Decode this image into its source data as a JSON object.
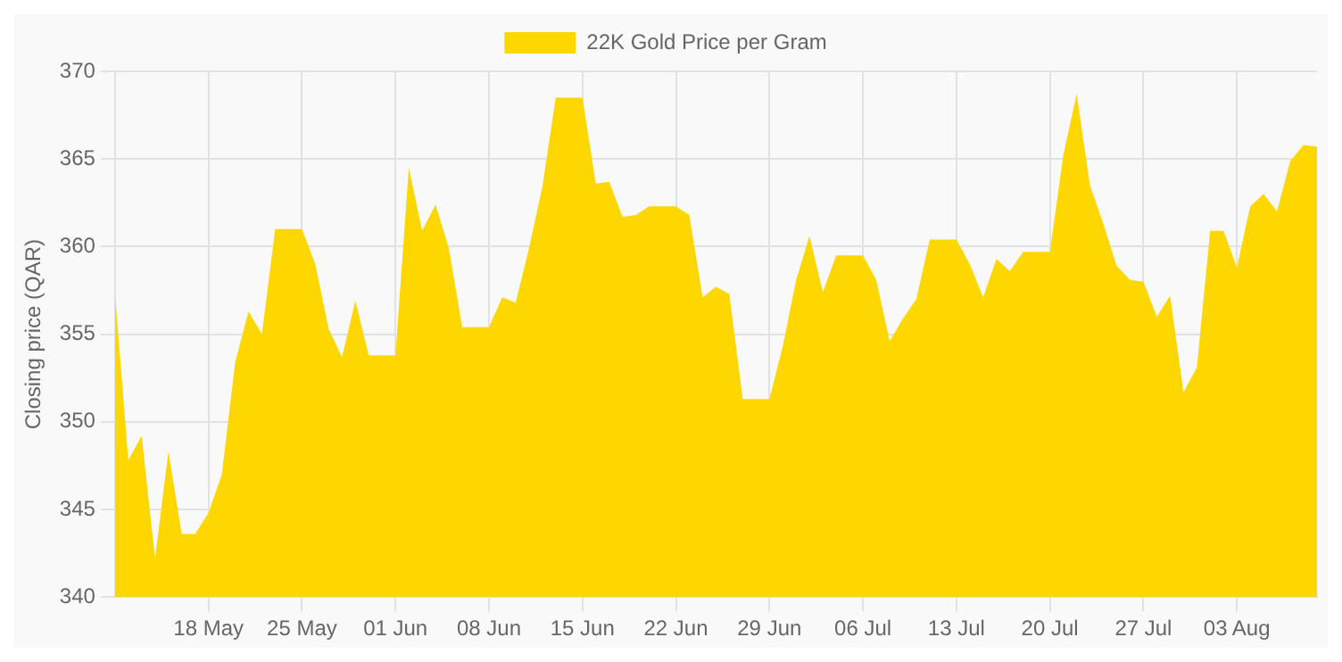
{
  "chart_data": {
    "type": "area",
    "ylabel": "Closing price (QAR)",
    "legend": "top",
    "grid": true,
    "marker": "none",
    "x": [
      "--05-11",
      "--05-12",
      "--05-13",
      "--05-14",
      "--05-15",
      "--05-16",
      "--05-17",
      "--05-18",
      "--05-19",
      "--05-20",
      "--05-21",
      "--05-22",
      "--05-23",
      "--05-24",
      "--05-25",
      "--05-26",
      "--05-27",
      "--05-28",
      "--05-29",
      "--05-30",
      "--05-31",
      "--06-01",
      "--06-02",
      "--06-03",
      "--06-04",
      "--06-05",
      "--06-06",
      "--06-07",
      "--06-08",
      "--06-09",
      "--06-10",
      "--06-11",
      "--06-12",
      "--06-13",
      "--06-14",
      "--06-15",
      "--06-16",
      "--06-17",
      "--06-18",
      "--06-19",
      "--06-20",
      "--06-21",
      "--06-22",
      "--06-23",
      "--06-24",
      "--06-25",
      "--06-26",
      "--06-27",
      "--06-28",
      "--06-29",
      "--06-30",
      "--07-01",
      "--07-02",
      "--07-03",
      "--07-04",
      "--07-05",
      "--07-06",
      "--07-07",
      "--07-08",
      "--07-09",
      "--07-10",
      "--07-11",
      "--07-12",
      "--07-13",
      "--07-14",
      "--07-15",
      "--07-16",
      "--07-17",
      "--07-18",
      "--07-19",
      "--07-20",
      "--07-21",
      "--07-22",
      "--07-23",
      "--07-24",
      "--07-25",
      "--07-26",
      "--07-27",
      "--07-28",
      "--07-29",
      "--07-30",
      "--07-31",
      "--08-01",
      "--08-02",
      "--08-03",
      "--08-04",
      "--08-05",
      "--08-06",
      "--08-07",
      "--08-08",
      "--08-09"
    ],
    "series": [
      {
        "name": "22K Gold Price per Gram",
        "color": "#ffd700",
        "values": [
          357.3,
          347.8,
          349.2,
          342.2,
          348.3,
          343.6,
          343.6,
          344.8,
          347.0,
          353.4,
          356.3,
          355.0,
          361.0,
          361.0,
          361.0,
          359.0,
          355.3,
          353.7,
          356.9,
          353.8,
          353.8,
          353.8,
          364.5,
          360.9,
          362.4,
          359.9,
          355.4,
          355.4,
          355.4,
          357.1,
          356.8,
          359.9,
          363.4,
          368.5,
          368.5,
          368.5,
          363.6,
          363.7,
          361.7,
          361.8,
          362.3,
          362.3,
          362.3,
          361.8,
          357.1,
          357.7,
          357.3,
          351.3,
          351.3,
          351.3,
          354.3,
          358.1,
          360.6,
          357.4,
          359.5,
          359.5,
          359.5,
          358.1,
          354.6,
          355.9,
          357.0,
          360.4,
          360.4,
          360.4,
          359.0,
          357.1,
          359.3,
          358.6,
          359.7,
          359.7,
          359.7,
          365.2,
          368.7,
          363.5,
          361.3,
          358.9,
          358.1,
          358.0,
          356.0,
          357.2,
          351.7,
          353.1,
          360.9,
          360.9,
          358.8,
          362.3,
          363.0,
          362.0,
          364.9,
          365.8,
          365.7
        ]
      }
    ],
    "xlim": [
      "--05-11",
      "--08-09"
    ],
    "xticks": [
      {
        "value": "--05-18",
        "label": "18 May"
      },
      {
        "value": "--05-25",
        "label": "25 May"
      },
      {
        "value": "--06-01",
        "label": "01 Jun"
      },
      {
        "value": "--06-08",
        "label": "08 Jun"
      },
      {
        "value": "--06-15",
        "label": "15 Jun"
      },
      {
        "value": "--06-22",
        "label": "22 Jun"
      },
      {
        "value": "--06-29",
        "label": "29 Jun"
      },
      {
        "value": "--07-06",
        "label": "06 Jul"
      },
      {
        "value": "--07-13",
        "label": "13 Jul"
      },
      {
        "value": "--07-20",
        "label": "20 Jul"
      },
      {
        "value": "--07-27",
        "label": "27 Jul"
      },
      {
        "value": "--08-03",
        "label": "03 Aug"
      }
    ],
    "ylim": [
      340,
      370
    ],
    "yticks": [
      340,
      345,
      350,
      355,
      360,
      365,
      370
    ]
  }
}
